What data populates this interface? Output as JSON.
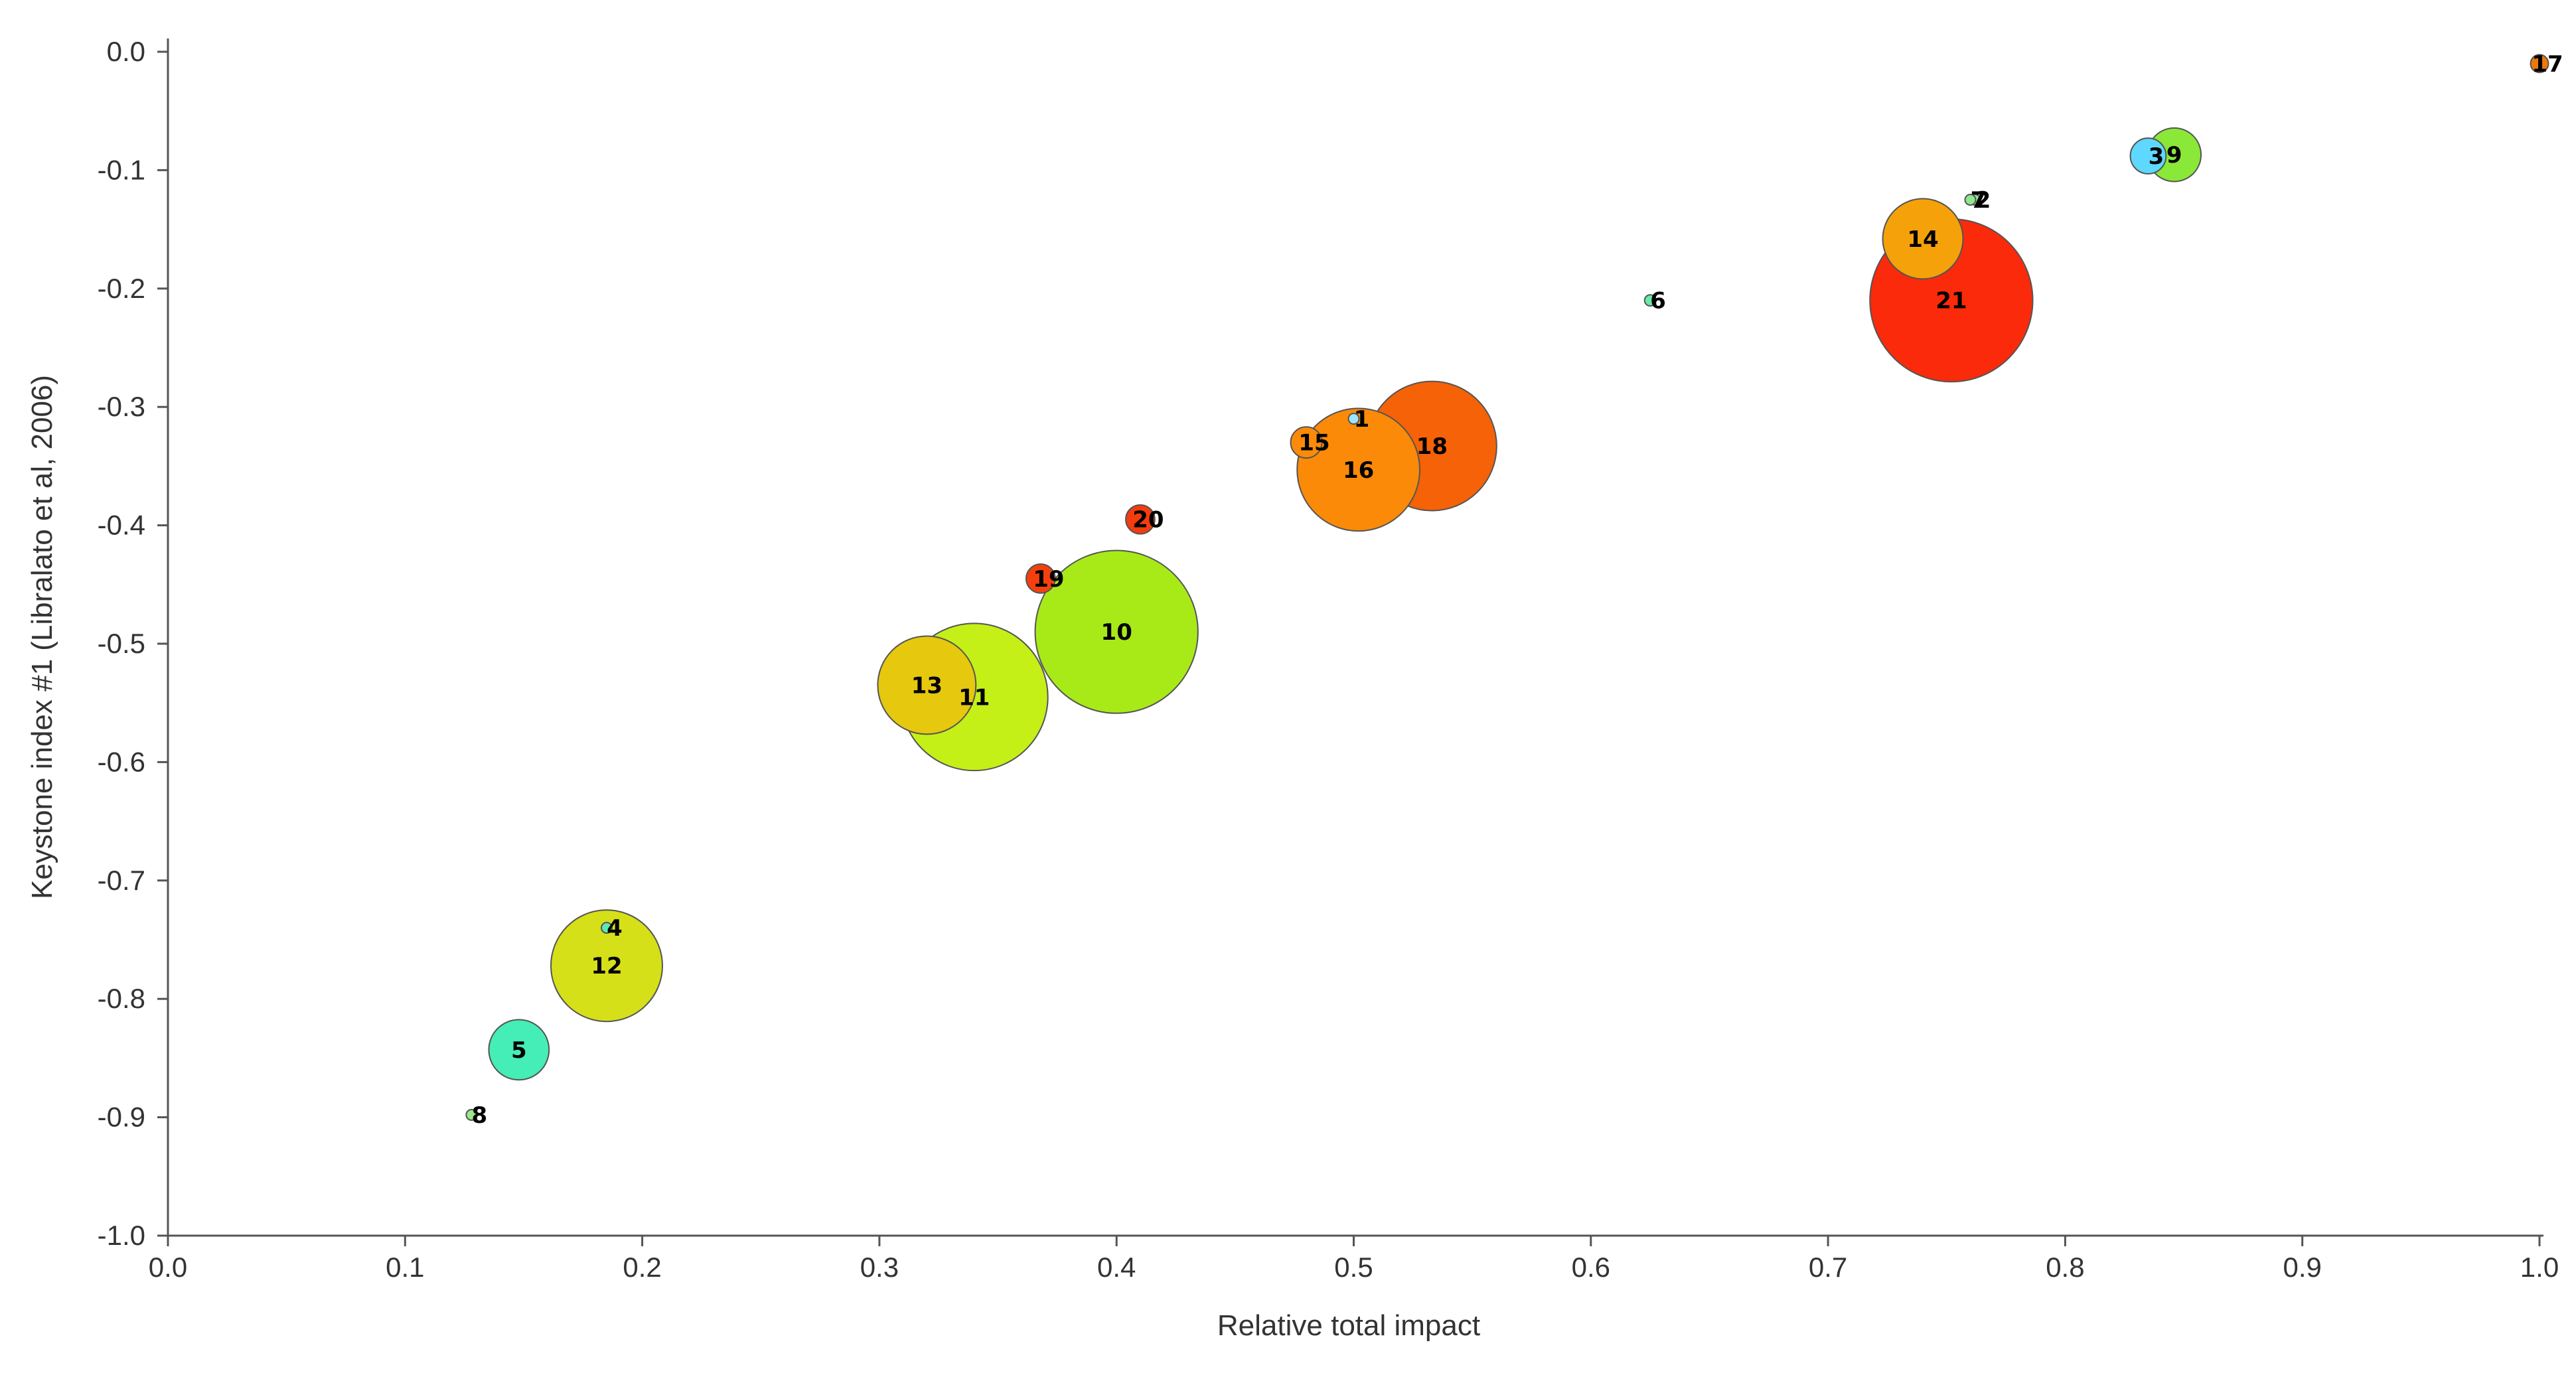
{
  "chart_data": {
    "type": "scatter",
    "subtype": "bubble",
    "title": "",
    "xlabel": "Relative total impact",
    "ylabel": "Keystone index #1 (Libralato et al, 2006)",
    "xlim": [
      0.0,
      1.0
    ],
    "ylim": [
      -1.0,
      0.0
    ],
    "x_ticks": [
      "0.0",
      "0.1",
      "0.2",
      "0.3",
      "0.4",
      "0.5",
      "0.6",
      "0.7",
      "0.8",
      "0.9",
      "1.0"
    ],
    "y_ticks": [
      "0.0",
      "-0.1",
      "-0.2",
      "-0.3",
      "-0.4",
      "-0.5",
      "-0.6",
      "-0.7",
      "-0.8",
      "-0.9",
      "-1.0"
    ],
    "grid": false,
    "legend": "none",
    "size_unit_note": "bubble size relative (max = 1.0)",
    "points": [
      {
        "label": "1",
        "x": 0.5,
        "y": -0.31,
        "size": 0.04,
        "color": "#9fe4ff"
      },
      {
        "label": "2",
        "x": 0.762,
        "y": -0.125,
        "size": 0.03,
        "color": "#8fe88f"
      },
      {
        "label": "3",
        "x": 0.835,
        "y": -0.088,
        "size": 0.16,
        "color": "#5fd8ff"
      },
      {
        "label": "4",
        "x": 0.185,
        "y": -0.74,
        "size": 0.03,
        "color": "#5ee8b0"
      },
      {
        "label": "5",
        "x": 0.148,
        "y": -0.843,
        "size": 0.27,
        "color": "#44eeb6"
      },
      {
        "label": "6",
        "x": 0.625,
        "y": -0.21,
        "size": 0.05,
        "color": "#6aeaa8"
      },
      {
        "label": "7",
        "x": 0.76,
        "y": -0.125,
        "size": 0.02,
        "color": "#8fe88f"
      },
      {
        "label": "8",
        "x": 0.128,
        "y": -0.898,
        "size": 0.03,
        "color": "#9ae88a"
      },
      {
        "label": "9",
        "x": 0.846,
        "y": -0.087,
        "size": 0.24,
        "color": "#8ae838"
      },
      {
        "label": "10",
        "x": 0.4,
        "y": -0.49,
        "size": 0.73,
        "color": "#a8ea18"
      },
      {
        "label": "11",
        "x": 0.34,
        "y": -0.545,
        "size": 0.66,
        "color": "#c4f018"
      },
      {
        "label": "12",
        "x": 0.185,
        "y": -0.772,
        "size": 0.5,
        "color": "#d6e018"
      },
      {
        "label": "13",
        "x": 0.32,
        "y": -0.535,
        "size": 0.44,
        "color": "#e6c80e"
      },
      {
        "label": "14",
        "x": 0.74,
        "y": -0.158,
        "size": 0.36,
        "color": "#f5a20a"
      },
      {
        "label": "15",
        "x": 0.48,
        "y": -0.33,
        "size": 0.14,
        "color": "#fb8a08"
      },
      {
        "label": "16",
        "x": 0.502,
        "y": -0.353,
        "size": 0.55,
        "color": "#fb8a08"
      },
      {
        "label": "17",
        "x": 1.0,
        "y": -0.01,
        "size": 0.08,
        "color": "#f07808"
      },
      {
        "label": "18",
        "x": 0.533,
        "y": -0.333,
        "size": 0.58,
        "color": "#f56208"
      },
      {
        "label": "19",
        "x": 0.368,
        "y": -0.445,
        "size": 0.13,
        "color": "#f5400e"
      },
      {
        "label": "20",
        "x": 0.41,
        "y": -0.395,
        "size": 0.13,
        "color": "#f53c0e"
      },
      {
        "label": "21",
        "x": 0.752,
        "y": -0.21,
        "size": 0.73,
        "color": "#fa2a0a"
      }
    ]
  }
}
